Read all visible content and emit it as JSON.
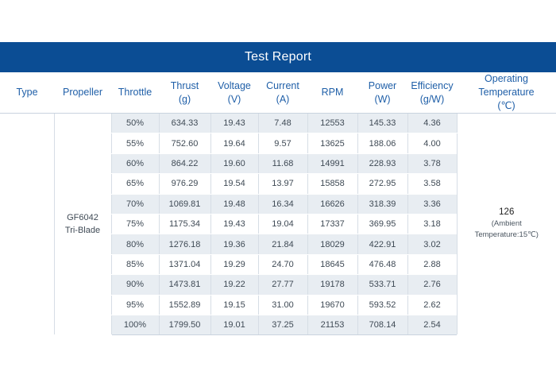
{
  "report": {
    "title": "Test Report",
    "headers": {
      "type": "Type",
      "propeller": "Propeller",
      "throttle": "Throttle",
      "thrust": [
        "Thrust",
        "(g)"
      ],
      "voltage": [
        "Voltage",
        "(V)"
      ],
      "current": [
        "Current",
        "(A)"
      ],
      "rpm": "RPM",
      "power": [
        "Power",
        "(W)"
      ],
      "efficiency": [
        "Efficiency",
        "(g/W)"
      ],
      "temperature": [
        "Operating",
        "Temperature",
        "(℃)"
      ]
    },
    "type_value": "",
    "propeller": [
      "GF6042",
      "Tri-Blade"
    ],
    "temperature": {
      "value": "126",
      "note_line1": "(Ambient",
      "note_line2": "Temperature:15℃)"
    },
    "rows": [
      {
        "throttle": "50%",
        "thrust": "634.33",
        "voltage": "19.43",
        "current": "7.48",
        "rpm": "12553",
        "power": "145.33",
        "efficiency": "4.36"
      },
      {
        "throttle": "55%",
        "thrust": "752.60",
        "voltage": "19.64",
        "current": "9.57",
        "rpm": "13625",
        "power": "188.06",
        "efficiency": "4.00"
      },
      {
        "throttle": "60%",
        "thrust": "864.22",
        "voltage": "19.60",
        "current": "11.68",
        "rpm": "14991",
        "power": "228.93",
        "efficiency": "3.78"
      },
      {
        "throttle": "65%",
        "thrust": "976.29",
        "voltage": "19.54",
        "current": "13.97",
        "rpm": "15858",
        "power": "272.95",
        "efficiency": "3.58"
      },
      {
        "throttle": "70%",
        "thrust": "1069.81",
        "voltage": "19.48",
        "current": "16.34",
        "rpm": "16626",
        "power": "318.39",
        "efficiency": "3.36"
      },
      {
        "throttle": "75%",
        "thrust": "1175.34",
        "voltage": "19.43",
        "current": "19.04",
        "rpm": "17337",
        "power": "369.95",
        "efficiency": "3.18"
      },
      {
        "throttle": "80%",
        "thrust": "1276.18",
        "voltage": "19.36",
        "current": "21.84",
        "rpm": "18029",
        "power": "422.91",
        "efficiency": "3.02"
      },
      {
        "throttle": "85%",
        "thrust": "1371.04",
        "voltage": "19.29",
        "current": "24.70",
        "rpm": "18645",
        "power": "476.48",
        "efficiency": "2.88"
      },
      {
        "throttle": "90%",
        "thrust": "1473.81",
        "voltage": "19.22",
        "current": "27.77",
        "rpm": "19178",
        "power": "533.71",
        "efficiency": "2.76"
      },
      {
        "throttle": "95%",
        "thrust": "1552.89",
        "voltage": "19.15",
        "current": "31.00",
        "rpm": "19670",
        "power": "593.52",
        "efficiency": "2.62"
      },
      {
        "throttle": "100%",
        "thrust": "1799.50",
        "voltage": "19.01",
        "current": "37.25",
        "rpm": "21153",
        "power": "708.14",
        "efficiency": "2.54"
      }
    ]
  }
}
